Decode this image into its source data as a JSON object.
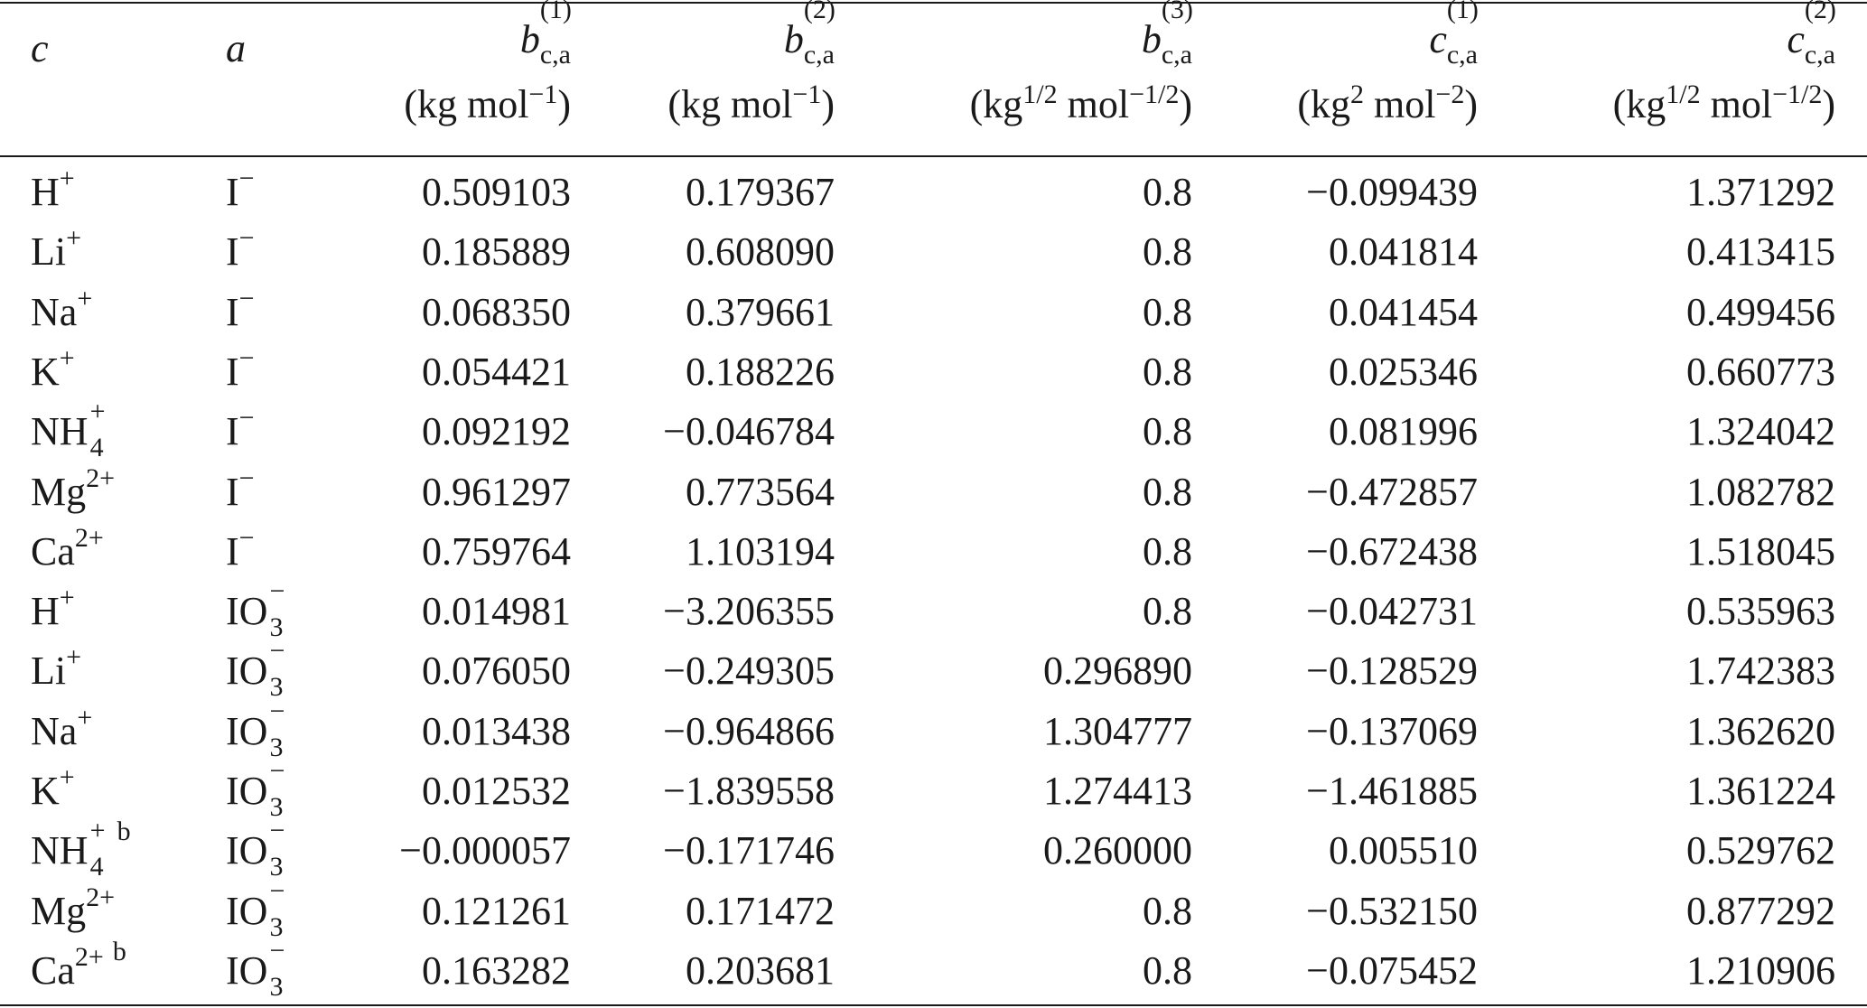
{
  "header": {
    "cation_label": "c",
    "anion_label": "a",
    "columns": [
      {
        "var": "b",
        "sup": "(1)",
        "sub": "c,a",
        "unit_pre": "(kg mol",
        "unit_exp": "−1",
        "unit_post": ")"
      },
      {
        "var": "b",
        "sup": "(2)",
        "sub": "c,a",
        "unit_pre": "(kg mol",
        "unit_exp": "−1",
        "unit_post": ")"
      },
      {
        "var": "b",
        "sup": "(3)",
        "sub": "c,a",
        "unit_pre": "(kg",
        "unit_mid_exp": "1/2",
        "unit_mid": " mol",
        "unit_exp": "−1/2",
        "unit_post": ")"
      },
      {
        "var": "c",
        "sup": "(1)",
        "sub": "c,a",
        "unit_pre": "(kg",
        "unit_mid_exp": "2",
        "unit_mid": " mol",
        "unit_exp": "−2",
        "unit_post": ")"
      },
      {
        "var": "c",
        "sup": "(2)",
        "sub": "c,a",
        "unit_pre": "(kg",
        "unit_mid_exp": "1/2",
        "unit_mid": " mol",
        "unit_exp": "−1/2",
        "unit_post": ")"
      }
    ]
  },
  "rows": [
    {
      "cation": {
        "base": "H",
        "charge": "+"
      },
      "anion": {
        "base": "I",
        "charge": "−"
      },
      "values": [
        "0.509103",
        "0.179367",
        "0.8",
        "−0.099439",
        "1.371292"
      ]
    },
    {
      "cation": {
        "base": "Li",
        "charge": "+"
      },
      "anion": {
        "base": "I",
        "charge": "−"
      },
      "values": [
        "0.185889",
        "0.608090",
        "0.8",
        "0.041814",
        "0.413415"
      ]
    },
    {
      "cation": {
        "base": "Na",
        "charge": "+"
      },
      "anion": {
        "base": "I",
        "charge": "−"
      },
      "values": [
        "0.068350",
        "0.379661",
        "0.8",
        "0.041454",
        "0.499456"
      ]
    },
    {
      "cation": {
        "base": "K",
        "charge": "+"
      },
      "anion": {
        "base": "I",
        "charge": "−"
      },
      "values": [
        "0.054421",
        "0.188226",
        "0.8",
        "0.025346",
        "0.660773"
      ]
    },
    {
      "cation": {
        "base": "NH",
        "charge": "+",
        "sub": "4"
      },
      "anion": {
        "base": "I",
        "charge": "−"
      },
      "values": [
        "0.092192",
        "−0.046784",
        "0.8",
        "0.081996",
        "1.324042"
      ]
    },
    {
      "cation": {
        "base": "Mg",
        "charge": "2+"
      },
      "anion": {
        "base": "I",
        "charge": "−"
      },
      "values": [
        "0.961297",
        "0.773564",
        "0.8",
        "−0.472857",
        "1.082782"
      ]
    },
    {
      "cation": {
        "base": "Ca",
        "charge": "2+"
      },
      "anion": {
        "base": "I",
        "charge": "−"
      },
      "values": [
        "0.759764",
        "1.103194",
        "0.8",
        "−0.672438",
        "1.518045"
      ]
    },
    {
      "cation": {
        "base": "H",
        "charge": "+"
      },
      "anion": {
        "base": "IO",
        "charge": "−",
        "sub": "3"
      },
      "values": [
        "0.014981",
        "−3.206355",
        "0.8",
        "−0.042731",
        "0.535963"
      ]
    },
    {
      "cation": {
        "base": "Li",
        "charge": "+"
      },
      "anion": {
        "base": "IO",
        "charge": "−",
        "sub": "3"
      },
      "values": [
        "0.076050",
        "−0.249305",
        "0.296890",
        "−0.128529",
        "1.742383"
      ]
    },
    {
      "cation": {
        "base": "Na",
        "charge": "+"
      },
      "anion": {
        "base": "IO",
        "charge": "−",
        "sub": "3"
      },
      "values": [
        "0.013438",
        "−0.964866",
        "1.304777",
        "−0.137069",
        "1.362620"
      ]
    },
    {
      "cation": {
        "base": "K",
        "charge": "+"
      },
      "anion": {
        "base": "IO",
        "charge": "−",
        "sub": "3"
      },
      "values": [
        "0.012532",
        "−1.839558",
        "1.274413",
        "−1.461885",
        "1.361224"
      ]
    },
    {
      "cation": {
        "base": "NH",
        "charge": "+",
        "sub": "4",
        "footnote": "b"
      },
      "anion": {
        "base": "IO",
        "charge": "−",
        "sub": "3"
      },
      "values": [
        "−0.000057",
        "−0.171746",
        "0.260000",
        "0.005510",
        "0.529762"
      ]
    },
    {
      "cation": {
        "base": "Mg",
        "charge": "2+"
      },
      "anion": {
        "base": "IO",
        "charge": "−",
        "sub": "3"
      },
      "values": [
        "0.121261",
        "0.171472",
        "0.8",
        "−0.532150",
        "0.877292"
      ]
    },
    {
      "cation": {
        "base": "Ca",
        "charge": "2+",
        "footnote": "b"
      },
      "anion": {
        "base": "IO",
        "charge": "−",
        "sub": "3"
      },
      "values": [
        "0.163282",
        "0.203681",
        "0.8",
        "−0.075452",
        "1.210906"
      ]
    }
  ]
}
